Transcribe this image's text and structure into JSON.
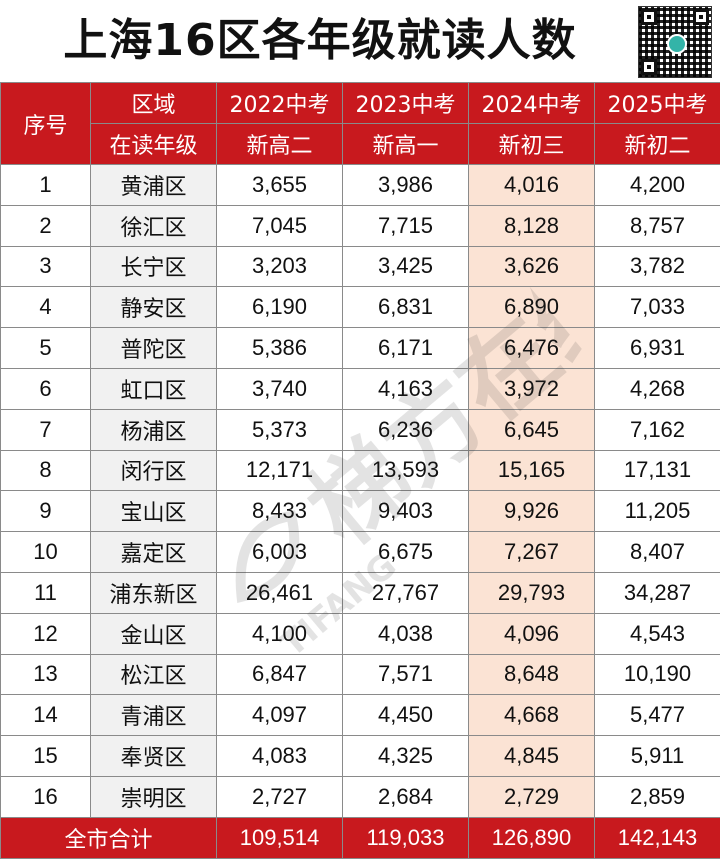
{
  "title": "上海16区各年级就读人数",
  "header": {
    "row1": {
      "index": "序号",
      "district": "区域",
      "cols": [
        "2022中考",
        "2023中考",
        "2024中考",
        "2025中考"
      ]
    },
    "row2": {
      "district": "在读年级",
      "cols": [
        "新高二",
        "新高一",
        "新初三",
        "新初二"
      ]
    }
  },
  "rows": [
    {
      "no": "1",
      "district": "黄浦区",
      "values": [
        "3,655",
        "3,986",
        "4,016",
        "4,200"
      ]
    },
    {
      "no": "2",
      "district": "徐汇区",
      "values": [
        "7,045",
        "7,715",
        "8,128",
        "8,757"
      ]
    },
    {
      "no": "3",
      "district": "长宁区",
      "values": [
        "3,203",
        "3,425",
        "3,626",
        "3,782"
      ]
    },
    {
      "no": "4",
      "district": "静安区",
      "values": [
        "6,190",
        "6,831",
        "6,890",
        "7,033"
      ]
    },
    {
      "no": "5",
      "district": "普陀区",
      "values": [
        "5,386",
        "6,171",
        "6,476",
        "6,931"
      ]
    },
    {
      "no": "6",
      "district": "虹口区",
      "values": [
        "3,740",
        "4,163",
        "3,972",
        "4,268"
      ]
    },
    {
      "no": "7",
      "district": "杨浦区",
      "values": [
        "5,373",
        "6,236",
        "6,645",
        "7,162"
      ]
    },
    {
      "no": "8",
      "district": "闵行区",
      "values": [
        "12,171",
        "13,593",
        "15,165",
        "17,131"
      ]
    },
    {
      "no": "9",
      "district": "宝山区",
      "values": [
        "8,433",
        "9,403",
        "9,926",
        "11,205"
      ]
    },
    {
      "no": "10",
      "district": "嘉定区",
      "values": [
        "6,003",
        "6,675",
        "7,267",
        "8,407"
      ]
    },
    {
      "no": "11",
      "district": "浦东新区",
      "values": [
        "26,461",
        "27,767",
        "29,793",
        "34,287"
      ]
    },
    {
      "no": "12",
      "district": "金山区",
      "values": [
        "4,100",
        "4,038",
        "4,096",
        "4,543"
      ]
    },
    {
      "no": "13",
      "district": "松江区",
      "values": [
        "6,847",
        "7,571",
        "8,648",
        "10,190"
      ]
    },
    {
      "no": "14",
      "district": "青浦区",
      "values": [
        "4,097",
        "4,450",
        "4,668",
        "5,477"
      ]
    },
    {
      "no": "15",
      "district": "奉贤区",
      "values": [
        "4,083",
        "4,325",
        "4,845",
        "5,911"
      ]
    },
    {
      "no": "16",
      "district": "崇明区",
      "values": [
        "2,727",
        "2,684",
        "2,729",
        "2,859"
      ]
    }
  ],
  "footer": {
    "label": "全市合计",
    "values": [
      "109,514",
      "119,033",
      "126,890",
      "142,143"
    ]
  },
  "watermark": {
    "text": "梯方在线",
    "latin": "TIFANG"
  },
  "colors": {
    "header_red": "#c8191e",
    "highlight_column": "#fbe3d4",
    "district_column": "#f1f1f1"
  },
  "icons": {
    "qr": "qr-code-icon"
  }
}
